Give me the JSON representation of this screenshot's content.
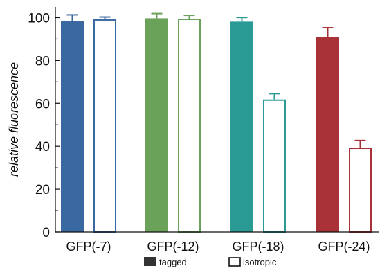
{
  "chart_data": {
    "type": "bar",
    "categories": [
      "GFP(-7)",
      "GFP(-12)",
      "GFP(-18)",
      "GFP(-24)"
    ],
    "series": [
      {
        "name": "tagged",
        "style": "filled",
        "values": [
          98.5,
          99.7,
          98.1,
          91.0
        ],
        "errors": [
          2.8,
          2.2,
          2.0,
          4.3
        ]
      },
      {
        "name": "isotropic",
        "style": "outline",
        "values": [
          99.2,
          99.5,
          61.8,
          39.4
        ],
        "errors": [
          1.1,
          1.6,
          2.7,
          3.3
        ]
      }
    ],
    "colors": [
      "#3a68a0",
      "#6aa25a",
      "#2a9a94",
      "#a83238"
    ],
    "xlabel": "",
    "ylabel": "relative fluorescence",
    "ylim": [
      0,
      105
    ],
    "yticks": [
      0,
      20,
      40,
      60,
      80,
      100
    ],
    "legend_position": "bottom",
    "grid": false
  }
}
